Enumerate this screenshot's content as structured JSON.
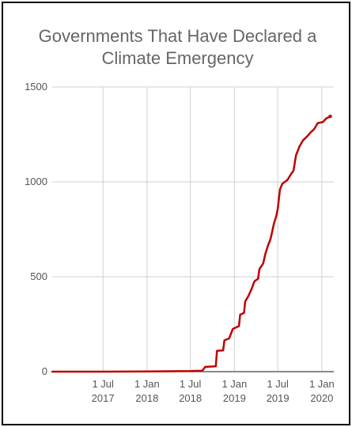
{
  "chart_data": {
    "type": "line",
    "title_lines": [
      "Governments That Have Declared a",
      "Climate Emergency"
    ],
    "xlabel": "",
    "ylabel": "",
    "ylim": [
      0,
      1500
    ],
    "yticks": [
      "0",
      "500",
      "1000",
      "1500"
    ],
    "xtick_labels": [
      {
        "date": "2017-07-01",
        "line1": "1 Jul",
        "line2": "2017"
      },
      {
        "date": "2018-01-01",
        "line1": "1 Jan",
        "line2": "2018"
      },
      {
        "date": "2018-07-01",
        "line1": "1 Jul",
        "line2": "2018"
      },
      {
        "date": "2019-01-01",
        "line1": "1 Jan",
        "line2": "2019"
      },
      {
        "date": "2019-07-01",
        "line1": "1 Jul",
        "line2": "2019"
      },
      {
        "date": "2020-01-01",
        "line1": "1 Jan",
        "line2": "2020"
      }
    ],
    "xlim": [
      "2016-12-01",
      "2020-02-20"
    ],
    "grid": true,
    "line_color": "#c00000",
    "series": [
      {
        "name": "",
        "points": [
          [
            "2016-12-01",
            0
          ],
          [
            "2017-07-01",
            0
          ],
          [
            "2018-01-01",
            1
          ],
          [
            "2018-07-01",
            3
          ],
          [
            "2018-08-20",
            5
          ],
          [
            "2018-09-01",
            25
          ],
          [
            "2018-10-15",
            28
          ],
          [
            "2018-10-20",
            110
          ],
          [
            "2018-11-15",
            112
          ],
          [
            "2018-11-20",
            165
          ],
          [
            "2018-12-10",
            175
          ],
          [
            "2018-12-25",
            225
          ],
          [
            "2019-01-20",
            240
          ],
          [
            "2019-01-25",
            300
          ],
          [
            "2019-02-10",
            310
          ],
          [
            "2019-02-15",
            370
          ],
          [
            "2019-03-01",
            400
          ],
          [
            "2019-03-15",
            440
          ],
          [
            "2019-03-25",
            475
          ],
          [
            "2019-04-10",
            490
          ],
          [
            "2019-04-15",
            540
          ],
          [
            "2019-05-01",
            570
          ],
          [
            "2019-05-10",
            620
          ],
          [
            "2019-05-20",
            660
          ],
          [
            "2019-06-01",
            700
          ],
          [
            "2019-06-15",
            780
          ],
          [
            "2019-06-25",
            820
          ],
          [
            "2019-07-01",
            860
          ],
          [
            "2019-07-10",
            960
          ],
          [
            "2019-07-20",
            990
          ],
          [
            "2019-08-10",
            1010
          ],
          [
            "2019-08-25",
            1040
          ],
          [
            "2019-09-05",
            1060
          ],
          [
            "2019-09-15",
            1140
          ],
          [
            "2019-10-01",
            1190
          ],
          [
            "2019-10-15",
            1220
          ],
          [
            "2019-11-01",
            1240
          ],
          [
            "2019-11-15",
            1260
          ],
          [
            "2019-12-01",
            1280
          ],
          [
            "2019-12-15",
            1310
          ],
          [
            "2020-01-05",
            1315
          ],
          [
            "2020-01-20",
            1335
          ],
          [
            "2020-02-05",
            1345
          ]
        ]
      }
    ]
  }
}
